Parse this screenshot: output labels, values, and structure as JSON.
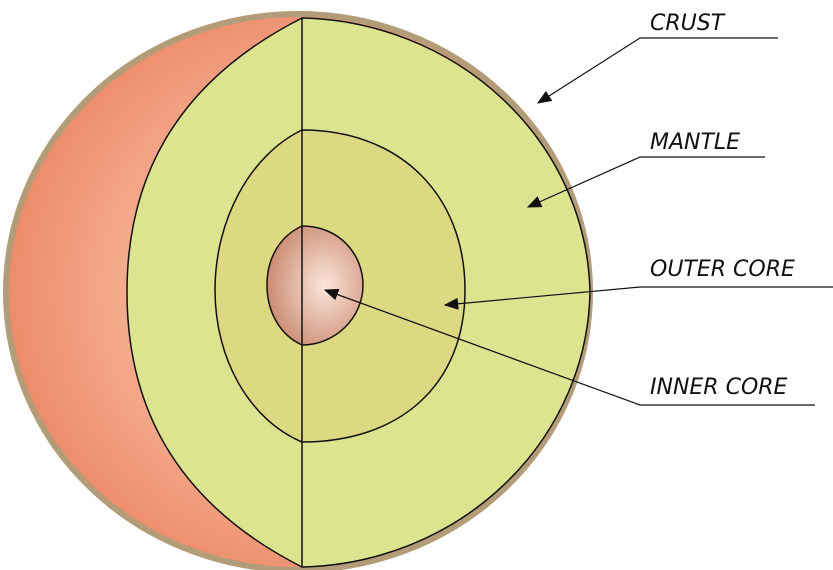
{
  "labels": [
    "CRUST",
    "MANTLE",
    "OUTER CORE",
    "INNER CORE"
  ]
}
